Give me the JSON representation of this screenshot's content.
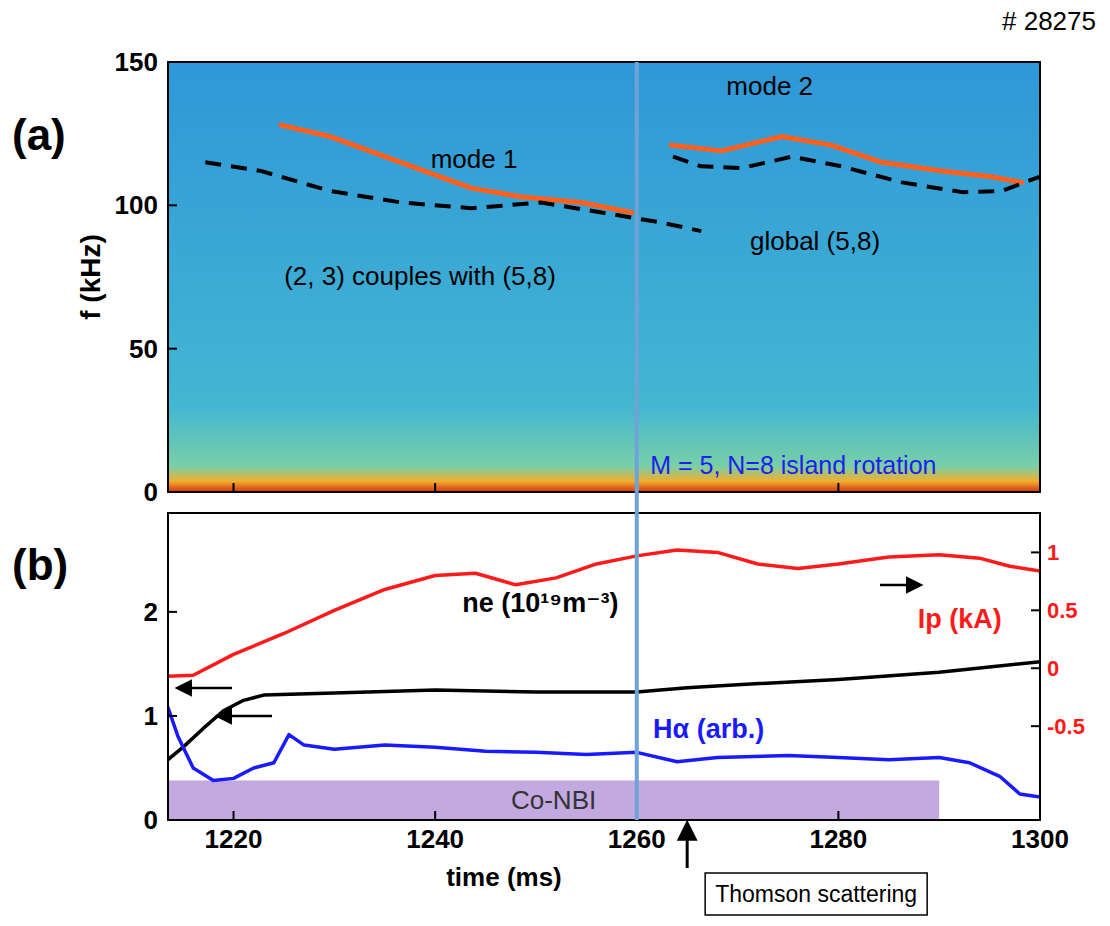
{
  "chart_data": [
    {
      "type": "spectrogram",
      "title": "# 28275",
      "panel": "(a)",
      "ylabel": "f (kHz)",
      "xlim": [
        1213.5,
        1300
      ],
      "xticks": [
        1220,
        1240,
        1260,
        1280,
        1300
      ],
      "ylim": [
        0,
        150
      ],
      "yticks": [
        0,
        50,
        100,
        150
      ],
      "tick_labels": "y",
      "grid": false,
      "vline": {
        "x": 1260,
        "color": "#6fa3d6"
      },
      "annotations": [
        {
          "text": "M = 5, N=8 island rotation",
          "color": "#1f1fe6"
        }
      ],
      "series": [
        {
          "name": "mode 1",
          "color": "#ff6020",
          "line_style": "solid",
          "x": [
            1224.7,
            1229.6,
            1236.6,
            1243.6,
            1248.5,
            1254.5,
            1259.5
          ],
          "values": [
            128,
            124,
            115,
            106,
            103,
            101,
            97.5
          ]
        },
        {
          "name": "mode 2",
          "color": "#ff6020",
          "line_style": "solid",
          "x": [
            1263.4,
            1268.4,
            1274.4,
            1279.3,
            1284.3,
            1290.3,
            1295.2,
            1298.2
          ],
          "values": [
            121,
            119,
            124,
            121,
            115,
            112,
            110,
            108
          ]
        },
        {
          "name": "(2, 3) couples with (5,8)",
          "color": "#000000",
          "line_style": "dashed",
          "x": [
            1217.2,
            1222.7,
            1229.6,
            1236.6,
            1243.6,
            1250.5,
            1256.5,
            1262.4,
            1266.4
          ],
          "values": [
            115,
            112,
            105,
            101,
            99,
            101,
            97.5,
            94,
            91
          ]
        },
        {
          "name": "global (5,8)",
          "color": "#000000",
          "line_style": "dashed",
          "x": [
            1263.6,
            1266.4,
            1270.4,
            1275.4,
            1280.3,
            1286.3,
            1292.3,
            1296.2,
            1300
          ],
          "values": [
            117,
            113.6,
            113,
            117,
            113.6,
            108,
            104.6,
            105,
            110
          ]
        }
      ]
    },
    {
      "type": "line",
      "panel": "(b)",
      "xlabel": "time (ms)",
      "xlim": [
        1213.5,
        1300
      ],
      "xticks": [
        1220,
        1240,
        1260,
        1280,
        1300
      ],
      "ylim": [
        0,
        2.95
      ],
      "yticks": [
        0,
        1,
        2
      ],
      "y2lim": [
        -1.31,
        1.34
      ],
      "y2ticks": [
        -0.5,
        0,
        0.5,
        1
      ],
      "grid": false,
      "series": [
        {
          "name": "Ip (kA)",
          "color": "#ff1a1a",
          "axis": "y2",
          "x": [
            1213.5,
            1216,
            1220,
            1225,
            1230,
            1235,
            1240,
            1244,
            1248,
            1252,
            1256,
            1260,
            1264,
            1268,
            1272,
            1276,
            1280,
            1285,
            1290,
            1294,
            1297,
            1300
          ],
          "values": [
            -0.07,
            -0.06,
            0.12,
            0.3,
            0.5,
            0.68,
            0.8,
            0.82,
            0.72,
            0.78,
            0.9,
            0.97,
            1.02,
            1.0,
            0.9,
            0.86,
            0.9,
            0.96,
            0.98,
            0.95,
            0.88,
            0.84
          ]
        },
        {
          "name": "ne (10¹⁹m⁻³)",
          "color": "#000000",
          "x": [
            1213.5,
            1215,
            1217,
            1219,
            1221,
            1223,
            1230,
            1240,
            1250,
            1260,
            1265,
            1270,
            1280,
            1290,
            1300
          ],
          "values": [
            0.58,
            0.7,
            0.88,
            1.05,
            1.15,
            1.2,
            1.22,
            1.25,
            1.23,
            1.23,
            1.27,
            1.3,
            1.35,
            1.42,
            1.52
          ]
        },
        {
          "name": "Hα (arb.)",
          "color": "#1a1aff",
          "x": [
            1213.5,
            1214.5,
            1216,
            1218,
            1220,
            1222,
            1224,
            1225.5,
            1227,
            1230,
            1235,
            1240,
            1245,
            1250,
            1255,
            1260,
            1264,
            1268,
            1275,
            1280,
            1285,
            1290,
            1293,
            1296,
            1298,
            1300
          ],
          "values": [
            1.08,
            0.8,
            0.5,
            0.38,
            0.4,
            0.5,
            0.55,
            0.82,
            0.72,
            0.68,
            0.72,
            0.7,
            0.66,
            0.65,
            0.63,
            0.65,
            0.56,
            0.6,
            0.62,
            0.6,
            0.58,
            0.6,
            0.55,
            0.42,
            0.25,
            0.22
          ]
        }
      ],
      "bands": [
        {
          "text": "Co-NBI",
          "x0": 1213.5,
          "x1": 1290,
          "top": 0.38,
          "color": "#c2a9e0"
        }
      ],
      "annotations": [
        {
          "text": "Thomson scattering",
          "x": 1265
        }
      ]
    }
  ]
}
